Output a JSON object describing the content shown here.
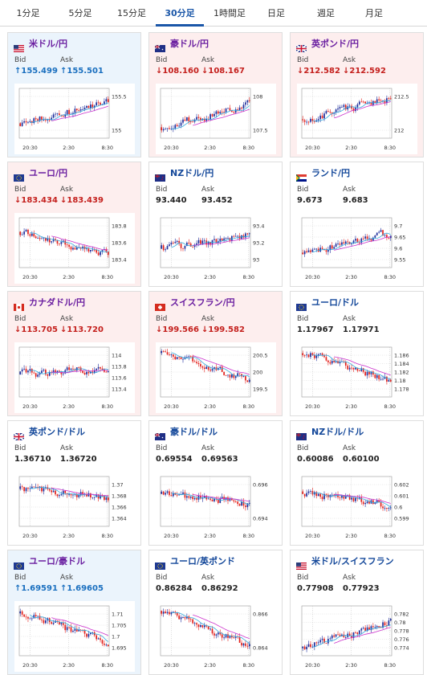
{
  "tabs": [
    {
      "label": "1分足",
      "active": false
    },
    {
      "label": "5分足",
      "active": false
    },
    {
      "label": "15分足",
      "active": false
    },
    {
      "label": "30分足",
      "active": true
    },
    {
      "label": "1時間足",
      "active": false
    },
    {
      "label": "日足",
      "active": false
    },
    {
      "label": "週足",
      "active": false
    },
    {
      "label": "月足",
      "active": false
    }
  ],
  "labels": {
    "bid": "Bid",
    "ask": "Ask"
  },
  "x_ticks": [
    "20:30",
    "2:30",
    "8:30"
  ],
  "cards": [
    {
      "title": "米ドル/円",
      "flag": "us-jp-flag-icon",
      "trend": "up",
      "bid": "↑155.499",
      "ask": "↑155.501",
      "ticks": [
        "155.5",
        "155"
      ],
      "seed": 11,
      "start": 0.7,
      "end": 0.28,
      "ma": [
        0.62,
        0.55,
        0.4
      ]
    },
    {
      "title": "豪ドル/円",
      "flag": "au-jp-flag-icon",
      "trend": "down",
      "bid": "↓108.160",
      "ask": "↓108.167",
      "ticks": [
        "108",
        "107.5"
      ],
      "seed": 23,
      "start": 0.78,
      "end": 0.32,
      "ma": [
        0.7,
        0.52,
        0.38
      ]
    },
    {
      "title": "英ポンド/円",
      "flag": "uk-jp-flag-icon",
      "trend": "down",
      "bid": "↓212.582",
      "ask": "↓212.592",
      "ticks": [
        "212.5",
        "212"
      ],
      "seed": 37,
      "start": 0.62,
      "end": 0.2,
      "ma": [
        0.68,
        0.48,
        0.3
      ]
    },
    {
      "title": "ユーロ/円",
      "flag": "eu-jp-flag-icon",
      "trend": "down",
      "bid": "↓183.434",
      "ask": "↓183.439",
      "ticks": [
        "183.8",
        "183.6",
        "183.4"
      ],
      "seed": 41,
      "start": 0.28,
      "end": 0.75,
      "ma": [
        0.32,
        0.45,
        0.65
      ]
    },
    {
      "title": "NZドル/円",
      "flag": "nz-jp-flag-icon",
      "trend": "neutral",
      "bid": "93.440",
      "ask": "93.452",
      "ticks": [
        "93.4",
        "93.2",
        "93"
      ],
      "seed": 53,
      "start": 0.62,
      "end": 0.35,
      "ma": [
        0.55,
        0.5,
        0.42
      ]
    },
    {
      "title": "ランド/円",
      "flag": "za-jp-flag-icon",
      "trend": "neutral",
      "bid": "9.673",
      "ask": "9.683",
      "ticks": [
        "9.7",
        "9.65",
        "9.6",
        "9.55"
      ],
      "seed": 67,
      "start": 0.7,
      "end": 0.3,
      "ma": [
        0.72,
        0.4,
        0.3
      ]
    },
    {
      "title": "カナダドル/円",
      "flag": "ca-jp-flag-icon",
      "trend": "down",
      "bid": "↓113.705",
      "ask": "↓113.720",
      "ticks": [
        "114",
        "113.8",
        "113.6",
        "113.4"
      ],
      "seed": 71,
      "start": 0.55,
      "end": 0.4,
      "ma": [
        0.55,
        0.42,
        0.4
      ]
    },
    {
      "title": "スイスフラン/円",
      "flag": "ch-jp-flag-icon",
      "trend": "down",
      "bid": "↓199.566",
      "ask": "↓199.582",
      "ticks": [
        "200.5",
        "200",
        "199.5"
      ],
      "seed": 83,
      "start": 0.12,
      "end": 0.65,
      "ma": [
        0.12,
        0.45,
        0.62
      ]
    },
    {
      "title": "ユーロ/ドル",
      "flag": "eu-us-flag-icon",
      "trend": "neutral",
      "bid": "1.17967",
      "ask": "1.17971",
      "ticks": [
        "1.186",
        "1.184",
        "1.182",
        "1.18",
        "1.178"
      ],
      "seed": 97,
      "start": 0.12,
      "end": 0.7,
      "ma": [
        0.1,
        0.35,
        0.6
      ]
    },
    {
      "title": "英ポンド/ドル",
      "flag": "uk-us-flag-icon",
      "trend": "neutral",
      "bid": "1.36710",
      "ask": "1.36720",
      "ticks": [
        "1.37",
        "1.368",
        "1.366",
        "1.364"
      ],
      "seed": 101,
      "start": 0.25,
      "end": 0.45,
      "ma": [
        0.3,
        0.42,
        0.48
      ]
    },
    {
      "title": "豪ドル/ドル",
      "flag": "au-us-flag-icon",
      "trend": "neutral",
      "bid": "0.69554",
      "ask": "0.69563",
      "ticks": [
        "0.696",
        "0.694"
      ],
      "seed": 113,
      "start": 0.35,
      "end": 0.55,
      "ma": [
        0.45,
        0.52,
        0.55
      ]
    },
    {
      "title": "NZドル/ドル",
      "flag": "nz-us-flag-icon",
      "trend": "neutral",
      "bid": "0.60086",
      "ask": "0.60100",
      "ticks": [
        "0.602",
        "0.601",
        "0.6",
        "0.599"
      ],
      "seed": 127,
      "start": 0.3,
      "end": 0.58,
      "ma": [
        0.3,
        0.45,
        0.55
      ]
    },
    {
      "title": "ユーロ/豪ドル",
      "flag": "eu-au-flag-icon",
      "trend": "up",
      "bid": "↑1.69591",
      "ask": "↑1.69605",
      "ticks": [
        "1.71",
        "1.705",
        "1.7",
        "1.695"
      ],
      "seed": 131,
      "start": 0.15,
      "end": 0.75,
      "ma": [
        0.2,
        0.4,
        0.65
      ]
    },
    {
      "title": "ユーロ/英ポンド",
      "flag": "eu-uk-flag-icon",
      "trend": "neutral",
      "bid": "0.86284",
      "ask": "0.86292",
      "ticks": [
        "0.866",
        "0.864"
      ],
      "seed": 139,
      "start": 0.1,
      "end": 0.8,
      "ma": [
        0.12,
        0.35,
        0.7
      ]
    },
    {
      "title": "米ドル/スイスフラン",
      "flag": "us-ch-flag-icon",
      "trend": "neutral",
      "bid": "0.77908",
      "ask": "0.77923",
      "ticks": [
        "0.782",
        "0.78",
        "0.778",
        "0.776",
        "0.774"
      ],
      "seed": 149,
      "start": 0.85,
      "end": 0.3,
      "ma": [
        0.8,
        0.4,
        0.3
      ]
    }
  ],
  "colors": {
    "tab_active": "#1a56a8",
    "up_bg": "#ebf4fc",
    "down_bg": "#fdeeee",
    "bull": "#1e2e9c",
    "bear": "#e3211c",
    "ma": "#cc33cc",
    "ma_fast": "#33aadd"
  }
}
